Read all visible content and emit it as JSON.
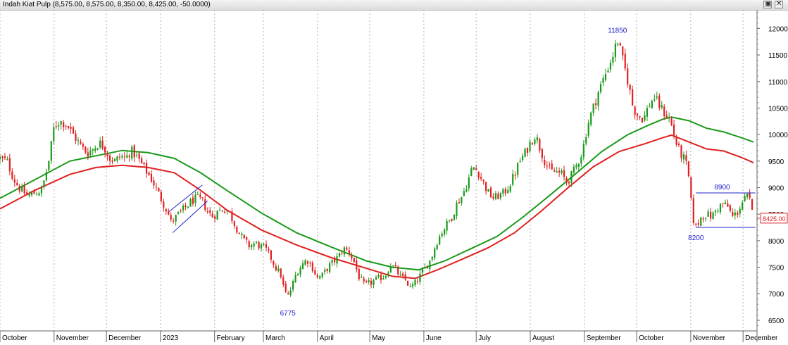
{
  "window": {
    "title": "Indah Kiat Pulp (8,575.00, 8,575.00, 8,350.00, 8,425.00, -50.0000)",
    "restore_glyph": "▣",
    "close_glyph": "✕"
  },
  "colors": {
    "up": "#1a9a1a",
    "down": "#e02020",
    "ma_short": "#e02020",
    "ma_long": "#1a9a1a",
    "annotation": "#2020cc",
    "grid": "#b4b4b4",
    "last_price": "#e02020"
  },
  "chart_data": {
    "type": "candlestick",
    "title": "Indah Kiat Pulp",
    "ohlc_latest": {
      "open": 8575,
      "high": 8575,
      "low": 8350,
      "close": 8425,
      "change": -50
    },
    "last_price_label": "8425.00",
    "y_axis": {
      "side": "right",
      "range": [
        6300,
        12350
      ],
      "ticks": [
        6500,
        7000,
        7500,
        8000,
        8500,
        9000,
        9500,
        10000,
        10500,
        11000,
        11500,
        12000
      ]
    },
    "x_axis": {
      "labels": [
        {
          "label": "October",
          "day": 0
        },
        {
          "label": "November",
          "day": 31
        },
        {
          "label": "December",
          "day": 61
        },
        {
          "label": "2023",
          "day": 92
        },
        {
          "label": "February",
          "day": 123
        },
        {
          "label": "March",
          "day": 151
        },
        {
          "label": "April",
          "day": 182
        },
        {
          "label": "May",
          "day": 212
        },
        {
          "label": "June",
          "day": 243
        },
        {
          "label": "July",
          "day": 273
        },
        {
          "label": "August",
          "day": 304
        },
        {
          "label": "September",
          "day": 335
        },
        {
          "label": "October",
          "day": 365
        },
        {
          "label": "November",
          "day": 396
        },
        {
          "label": "December",
          "day": 426
        }
      ],
      "range": [
        0,
        434
      ]
    },
    "grid": true,
    "price_path": [
      [
        0,
        9550
      ],
      [
        4,
        9500
      ],
      [
        8,
        9150
      ],
      [
        12,
        8950
      ],
      [
        16,
        8850
      ],
      [
        20,
        8900
      ],
      [
        24,
        8950
      ],
      [
        28,
        9500
      ],
      [
        31,
        10150
      ],
      [
        34,
        10250
      ],
      [
        38,
        10200
      ],
      [
        42,
        10000
      ],
      [
        46,
        9800
      ],
      [
        50,
        9650
      ],
      [
        54,
        9750
      ],
      [
        57,
        9850
      ],
      [
        60,
        9750
      ],
      [
        63,
        9550
      ],
      [
        66,
        9500
      ],
      [
        69,
        9600
      ],
      [
        72,
        9550
      ],
      [
        75,
        9700
      ],
      [
        78,
        9600
      ],
      [
        81,
        9450
      ],
      [
        84,
        9300
      ],
      [
        87,
        9150
      ],
      [
        90,
        8950
      ],
      [
        93,
        8750
      ],
      [
        96,
        8550
      ],
      [
        98,
        8350
      ],
      [
        101,
        8450
      ],
      [
        104,
        8550
      ],
      [
        107,
        8650
      ],
      [
        110,
        8750
      ],
      [
        113,
        8800
      ],
      [
        116,
        8750
      ],
      [
        119,
        8550
      ],
      [
        122,
        8450
      ],
      [
        125,
        8550
      ],
      [
        128,
        8600
      ],
      [
        131,
        8550
      ],
      [
        134,
        8350
      ],
      [
        137,
        8150
      ],
      [
        140,
        8000
      ],
      [
        143,
        7900
      ],
      [
        146,
        7950
      ],
      [
        149,
        7900
      ],
      [
        152,
        7850
      ],
      [
        155,
        7700
      ],
      [
        158,
        7500
      ],
      [
        161,
        7350
      ],
      [
        163,
        7050
      ],
      [
        165,
        6950
      ],
      [
        167,
        7100
      ],
      [
        170,
        7400
      ],
      [
        173,
        7550
      ],
      [
        176,
        7650
      ],
      [
        179,
        7500
      ],
      [
        182,
        7300
      ],
      [
        185,
        7350
      ],
      [
        188,
        7500
      ],
      [
        191,
        7600
      ],
      [
        194,
        7700
      ],
      [
        197,
        7850
      ],
      [
        200,
        7800
      ],
      [
        203,
        7600
      ],
      [
        206,
        7300
      ],
      [
        209,
        7150
      ],
      [
        212,
        7200
      ],
      [
        215,
        7250
      ],
      [
        218,
        7300
      ],
      [
        221,
        7350
      ],
      [
        224,
        7550
      ],
      [
        227,
        7450
      ],
      [
        230,
        7300
      ],
      [
        233,
        7250
      ],
      [
        235,
        7100
      ],
      [
        238,
        7200
      ],
      [
        241,
        7350
      ],
      [
        244,
        7500
      ],
      [
        247,
        7650
      ],
      [
        250,
        7950
      ],
      [
        253,
        8150
      ],
      [
        256,
        8300
      ],
      [
        259,
        8450
      ],
      [
        262,
        8700
      ],
      [
        265,
        8850
      ],
      [
        268,
        9100
      ],
      [
        271,
        9400
      ],
      [
        274,
        9300
      ],
      [
        277,
        9100
      ],
      [
        280,
        8900
      ],
      [
        283,
        8800
      ],
      [
        286,
        8850
      ],
      [
        289,
        8900
      ],
      [
        292,
        9050
      ],
      [
        295,
        9250
      ],
      [
        298,
        9500
      ],
      [
        301,
        9650
      ],
      [
        304,
        9850
      ],
      [
        307,
        10000
      ],
      [
        310,
        9700
      ],
      [
        313,
        9450
      ],
      [
        316,
        9300
      ],
      [
        319,
        9300
      ],
      [
        322,
        9250
      ],
      [
        325,
        9100
      ],
      [
        328,
        9250
      ],
      [
        331,
        9450
      ],
      [
        334,
        9700
      ],
      [
        337,
        10200
      ],
      [
        340,
        10500
      ],
      [
        343,
        10800
      ],
      [
        346,
        11050
      ],
      [
        349,
        11300
      ],
      [
        352,
        11550
      ],
      [
        354,
        11800
      ],
      [
        357,
        11400
      ],
      [
        360,
        11000
      ],
      [
        363,
        10500
      ],
      [
        366,
        10350
      ],
      [
        369,
        10300
      ],
      [
        372,
        10550
      ],
      [
        375,
        10700
      ],
      [
        378,
        10550
      ],
      [
        381,
        10400
      ],
      [
        384,
        10300
      ],
      [
        387,
        9900
      ],
      [
        390,
        9650
      ],
      [
        393,
        9500
      ],
      [
        395,
        9150
      ],
      [
        397,
        8450
      ],
      [
        399,
        8250
      ],
      [
        402,
        8450
      ],
      [
        405,
        8500
      ],
      [
        408,
        8450
      ],
      [
        411,
        8600
      ],
      [
        414,
        8700
      ],
      [
        417,
        8650
      ],
      [
        420,
        8450
      ],
      [
        423,
        8550
      ],
      [
        426,
        8750
      ],
      [
        429,
        8850
      ],
      [
        432,
        8425
      ]
    ],
    "series": [
      {
        "name": "",
        "type": "line",
        "points": [
          [
            0,
            8800
          ],
          [
            20,
            9150
          ],
          [
            40,
            9500
          ],
          [
            55,
            9600
          ],
          [
            70,
            9700
          ],
          [
            85,
            9660
          ],
          [
            100,
            9550
          ],
          [
            115,
            9280
          ],
          [
            130,
            8950
          ],
          [
            150,
            8520
          ],
          [
            170,
            8150
          ],
          [
            190,
            7880
          ],
          [
            210,
            7620
          ],
          [
            225,
            7500
          ],
          [
            240,
            7450
          ],
          [
            255,
            7620
          ],
          [
            270,
            7850
          ],
          [
            285,
            8080
          ],
          [
            300,
            8450
          ],
          [
            315,
            8850
          ],
          [
            330,
            9260
          ],
          [
            345,
            9680
          ],
          [
            360,
            10000
          ],
          [
            372,
            10180
          ],
          [
            380,
            10290
          ],
          [
            385,
            10330
          ],
          [
            395,
            10260
          ],
          [
            405,
            10120
          ],
          [
            415,
            10050
          ],
          [
            425,
            9940
          ],
          [
            432,
            9860
          ]
        ]
      },
      {
        "name": "",
        "type": "line",
        "points": [
          [
            0,
            8600
          ],
          [
            20,
            8950
          ],
          [
            40,
            9250
          ],
          [
            55,
            9380
          ],
          [
            70,
            9420
          ],
          [
            85,
            9380
          ],
          [
            100,
            9280
          ],
          [
            115,
            8950
          ],
          [
            130,
            8580
          ],
          [
            150,
            8200
          ],
          [
            170,
            7920
          ],
          [
            190,
            7680
          ],
          [
            210,
            7480
          ],
          [
            225,
            7330
          ],
          [
            238,
            7290
          ],
          [
            250,
            7440
          ],
          [
            265,
            7650
          ],
          [
            280,
            7870
          ],
          [
            295,
            8150
          ],
          [
            310,
            8550
          ],
          [
            325,
            8980
          ],
          [
            340,
            9390
          ],
          [
            355,
            9680
          ],
          [
            370,
            9830
          ],
          [
            380,
            9940
          ],
          [
            385,
            9990
          ],
          [
            395,
            9860
          ],
          [
            405,
            9730
          ],
          [
            415,
            9690
          ],
          [
            425,
            9570
          ],
          [
            432,
            9470
          ]
        ]
      }
    ],
    "annotations": [
      {
        "text": "11850",
        "day": 354,
        "price": 11850,
        "position": "above"
      },
      {
        "text": "6775",
        "day": 165,
        "price": 6775,
        "position": "below"
      },
      {
        "text": "8900",
        "day": 414,
        "price": 8900,
        "position": "above"
      },
      {
        "text": "8200",
        "day": 399,
        "price": 8200,
        "position": "below"
      }
    ],
    "channel_lines": [
      {
        "from": [
          399,
          8900
        ],
        "to": [
          433,
          8900
        ]
      },
      {
        "from": [
          399,
          8250
        ],
        "to": [
          433,
          8250
        ]
      }
    ],
    "trend_channel": {
      "upper": [
        [
          97,
          8550
        ],
        [
          116,
          9050
        ]
      ],
      "lower": [
        [
          99,
          8150
        ],
        [
          119,
          8750
        ]
      ]
    }
  }
}
